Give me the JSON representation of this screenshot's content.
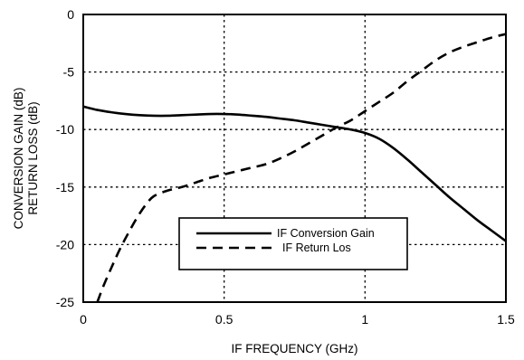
{
  "chart_data": {
    "type": "line",
    "title": "",
    "xlabel": "IF FREQUENCY (GHz)",
    "ylabel_lines": [
      "CONVERSION GAIN (dB)",
      "RETURN LOSS (dB)"
    ],
    "xlim": [
      0,
      1.5
    ],
    "ylim": [
      -25,
      0
    ],
    "x_ticks": [
      0,
      0.5,
      1,
      1.5
    ],
    "x_tick_labels": [
      "0",
      "0.5",
      "1",
      "1.5"
    ],
    "y_ticks": [
      0,
      -5,
      -10,
      -15,
      -20,
      -25
    ],
    "y_tick_labels": [
      "0",
      "-5",
      "-10",
      "-15",
      "-20",
      "-25"
    ],
    "grid": true,
    "grid_style": "dotted",
    "legend_position": "lower-center",
    "series": [
      {
        "name": "IF Conversion Gain",
        "line_style": "solid",
        "color": "#000000",
        "points": [
          [
            0,
            -8.0
          ],
          [
            0.05,
            -8.3
          ],
          [
            0.1,
            -8.5
          ],
          [
            0.15,
            -8.65
          ],
          [
            0.2,
            -8.75
          ],
          [
            0.25,
            -8.8
          ],
          [
            0.3,
            -8.8
          ],
          [
            0.35,
            -8.75
          ],
          [
            0.4,
            -8.7
          ],
          [
            0.45,
            -8.65
          ],
          [
            0.5,
            -8.65
          ],
          [
            0.55,
            -8.7
          ],
          [
            0.6,
            -8.8
          ],
          [
            0.65,
            -8.9
          ],
          [
            0.7,
            -9.05
          ],
          [
            0.75,
            -9.2
          ],
          [
            0.8,
            -9.4
          ],
          [
            0.85,
            -9.6
          ],
          [
            0.9,
            -9.8
          ],
          [
            0.95,
            -10.0
          ],
          [
            1.0,
            -10.3
          ],
          [
            1.05,
            -10.8
          ],
          [
            1.1,
            -11.6
          ],
          [
            1.15,
            -12.6
          ],
          [
            1.2,
            -13.7
          ],
          [
            1.25,
            -14.8
          ],
          [
            1.3,
            -15.9
          ],
          [
            1.35,
            -16.9
          ],
          [
            1.4,
            -17.9
          ],
          [
            1.45,
            -18.8
          ],
          [
            1.5,
            -19.7
          ]
        ]
      },
      {
        "name": "IF Return Los",
        "line_style": "dashed",
        "color": "#000000",
        "points": [
          [
            0.05,
            -25
          ],
          [
            0.07,
            -23.7
          ],
          [
            0.1,
            -22.0
          ],
          [
            0.13,
            -20.4
          ],
          [
            0.16,
            -19.0
          ],
          [
            0.19,
            -17.7
          ],
          [
            0.22,
            -16.6
          ],
          [
            0.25,
            -15.8
          ],
          [
            0.3,
            -15.3
          ],
          [
            0.35,
            -15.0
          ],
          [
            0.4,
            -14.6
          ],
          [
            0.45,
            -14.2
          ],
          [
            0.5,
            -13.9
          ],
          [
            0.55,
            -13.6
          ],
          [
            0.6,
            -13.3
          ],
          [
            0.65,
            -13.0
          ],
          [
            0.7,
            -12.5
          ],
          [
            0.75,
            -11.9
          ],
          [
            0.8,
            -11.2
          ],
          [
            0.85,
            -10.5
          ],
          [
            0.9,
            -9.8
          ],
          [
            0.95,
            -9.2
          ],
          [
            1.0,
            -8.4
          ],
          [
            1.05,
            -7.6
          ],
          [
            1.1,
            -6.8
          ],
          [
            1.15,
            -5.8
          ],
          [
            1.2,
            -4.9
          ],
          [
            1.25,
            -4.0
          ],
          [
            1.3,
            -3.3
          ],
          [
            1.35,
            -2.8
          ],
          [
            1.4,
            -2.4
          ],
          [
            1.45,
            -2.0
          ],
          [
            1.5,
            -1.7
          ]
        ]
      }
    ]
  }
}
